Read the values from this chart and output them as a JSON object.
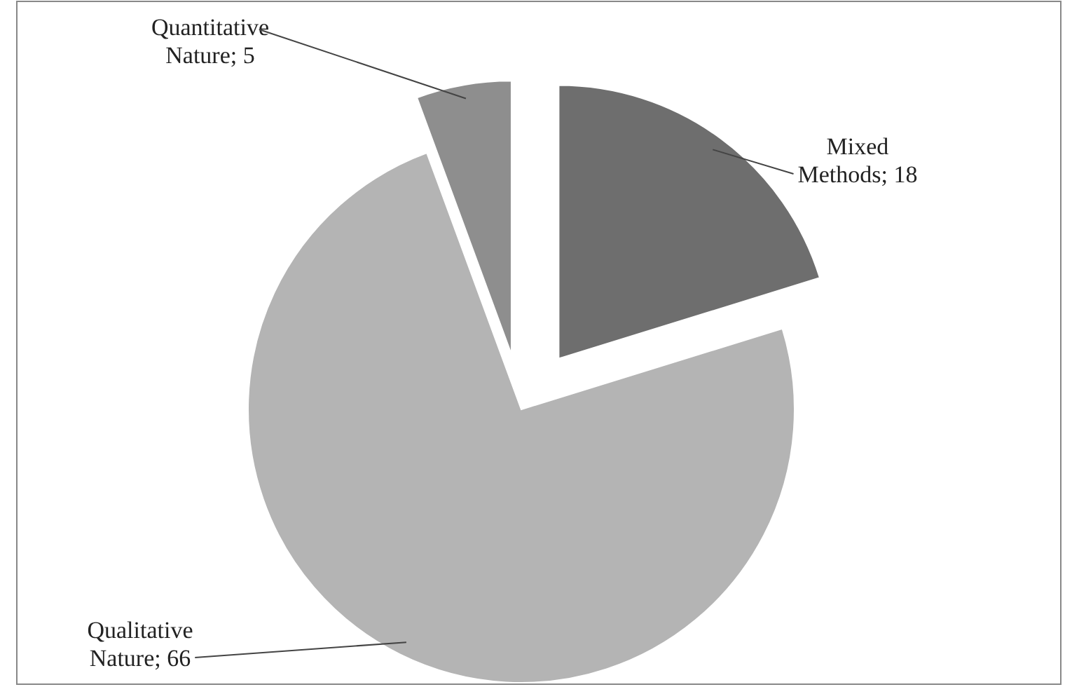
{
  "chart_data": {
    "type": "pie",
    "categories": [
      "Mixed Methods",
      "Qualitative Nature",
      "Quantitative Nature"
    ],
    "values": [
      18,
      66,
      5
    ],
    "value_labels": [
      "; 18",
      "; 66",
      "; 5"
    ],
    "colors": [
      "#6e6e6e",
      "#b4b4b4",
      "#8e8e8e"
    ]
  }
}
